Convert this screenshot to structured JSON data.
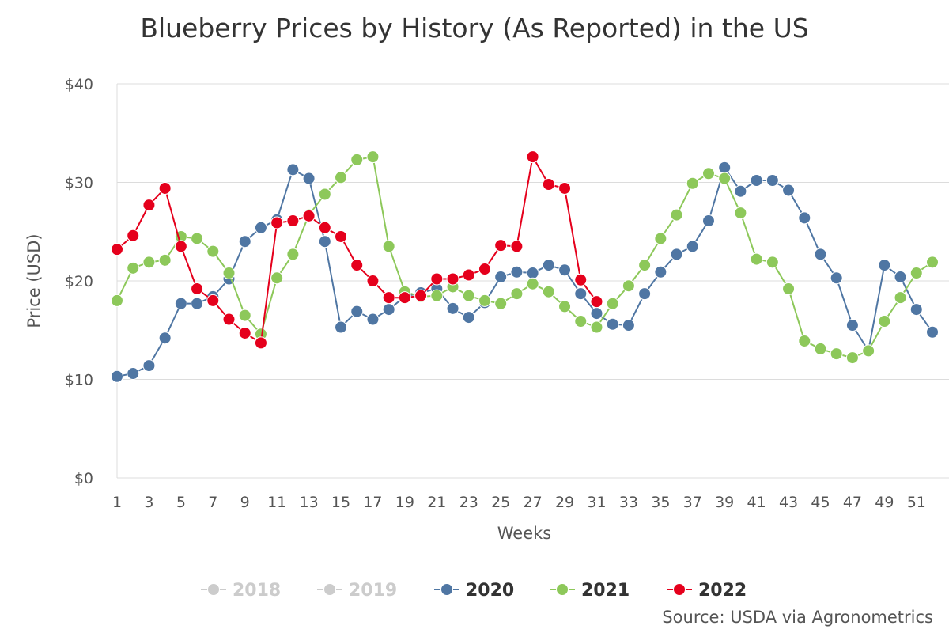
{
  "chart_data": {
    "type": "line",
    "title": "Blueberry Prices by History (As Reported) in the US",
    "xlabel": "Weeks",
    "ylabel": "Price (USD)",
    "ylim": [
      0,
      40
    ],
    "yticks": [
      0,
      10,
      20,
      30,
      40
    ],
    "ytick_labels": [
      "$0",
      "$10",
      "$20",
      "$30",
      "$40"
    ],
    "xlim": [
      1,
      52
    ],
    "xticks": [
      1,
      3,
      5,
      7,
      9,
      11,
      13,
      15,
      17,
      19,
      21,
      23,
      25,
      27,
      29,
      31,
      33,
      35,
      37,
      39,
      41,
      43,
      45,
      47,
      49,
      51
    ],
    "xtick_labels": [
      "1",
      "3",
      "5",
      "7",
      "9",
      "11",
      "13",
      "15",
      "17",
      "19",
      "21",
      "23",
      "25",
      "27",
      "29",
      "31",
      "33",
      "35",
      "37",
      "39",
      "41",
      "43",
      "45",
      "47",
      "49",
      "51"
    ],
    "grid": "horizontal",
    "legend_position": "bottom",
    "source": "Source: USDA via Agronometrics",
    "series": [
      {
        "name": "2018",
        "color": "#cccccc",
        "visible": false,
        "x": [],
        "values": []
      },
      {
        "name": "2019",
        "color": "#cccccc",
        "visible": false,
        "x": [],
        "values": []
      },
      {
        "name": "2020",
        "color": "#4f76a3",
        "visible": true,
        "x": [
          1,
          2,
          3,
          4,
          5,
          6,
          7,
          8,
          9,
          10,
          11,
          12,
          13,
          14,
          15,
          16,
          17,
          18,
          19,
          20,
          21,
          22,
          23,
          24,
          25,
          26,
          27,
          28,
          29,
          30,
          31,
          32,
          33,
          34,
          35,
          36,
          37,
          38,
          39,
          40,
          41,
          42,
          43,
          44,
          45,
          46,
          47,
          48,
          49,
          50,
          51,
          52
        ],
        "values": [
          10.3,
          10.6,
          11.4,
          14.2,
          17.7,
          17.7,
          18.4,
          20.2,
          24.0,
          25.4,
          26.2,
          31.3,
          30.4,
          24.0,
          15.3,
          16.9,
          16.1,
          17.1,
          18.4,
          18.8,
          19.2,
          17.2,
          16.3,
          17.8,
          20.4,
          20.9,
          20.8,
          21.6,
          21.1,
          18.7,
          16.7,
          15.6,
          15.5,
          18.7,
          20.9,
          22.7,
          23.5,
          26.1,
          31.5,
          29.1,
          30.2,
          30.2,
          29.2,
          26.4,
          22.7,
          20.3,
          15.5,
          12.9,
          21.6,
          20.4,
          17.1,
          14.8
        ]
      },
      {
        "name": "2021",
        "color": "#8dc85a",
        "visible": true,
        "x": [
          1,
          2,
          3,
          4,
          5,
          6,
          7,
          8,
          9,
          10,
          11,
          12,
          13,
          14,
          15,
          16,
          17,
          18,
          19,
          20,
          21,
          22,
          23,
          24,
          25,
          26,
          27,
          28,
          29,
          30,
          31,
          32,
          33,
          34,
          35,
          36,
          37,
          38,
          39,
          40,
          41,
          42,
          43,
          44,
          45,
          46,
          47,
          48,
          49,
          50,
          51,
          52
        ],
        "values": [
          18.0,
          21.3,
          21.9,
          22.1,
          24.5,
          24.3,
          23.0,
          20.8,
          16.5,
          14.6,
          20.3,
          22.7,
          26.7,
          28.8,
          30.5,
          32.3,
          32.6,
          23.5,
          18.9,
          18.4,
          18.5,
          19.4,
          18.5,
          18.0,
          17.7,
          18.7,
          19.7,
          18.9,
          17.4,
          15.9,
          15.3,
          17.7,
          19.5,
          21.6,
          24.3,
          26.7,
          29.9,
          30.9,
          30.4,
          26.9,
          22.2,
          21.9,
          19.2,
          13.9,
          13.1,
          12.6,
          12.2,
          12.9,
          15.9,
          18.3,
          20.8,
          21.9
        ]
      },
      {
        "name": "2022",
        "color": "#e5001c",
        "visible": true,
        "x": [
          1,
          2,
          3,
          4,
          5,
          6,
          7,
          8,
          9,
          10,
          11,
          12,
          13,
          14,
          15,
          16,
          17,
          18,
          19,
          20,
          21,
          22,
          23,
          24,
          25,
          26,
          27,
          28,
          29,
          30,
          31
        ],
        "values": [
          23.2,
          24.6,
          27.7,
          29.4,
          23.5,
          19.2,
          18.0,
          16.1,
          14.7,
          13.7,
          25.9,
          26.1,
          26.6,
          25.4,
          24.5,
          21.6,
          20.0,
          18.3,
          18.3,
          18.5,
          20.2,
          20.2,
          20.6,
          21.2,
          23.6,
          23.5,
          32.6,
          29.8,
          29.4,
          20.1,
          17.9
        ]
      }
    ]
  }
}
